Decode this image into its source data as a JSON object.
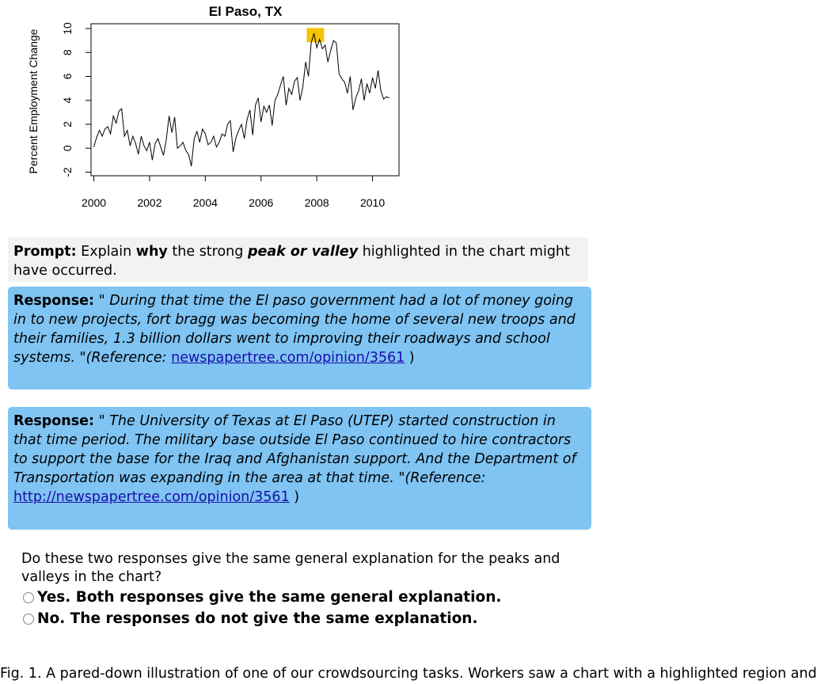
{
  "chart_data": {
    "type": "line",
    "title": "El Paso, TX",
    "xlabel": "",
    "ylabel": "Percent Employment Change",
    "xlim": [
      1999.9,
      2010.95
    ],
    "ylim": [
      -2.3,
      10.4
    ],
    "xticks": [
      "2000",
      "2002",
      "2004",
      "2006",
      "2008",
      "2010"
    ],
    "yticks": [
      "-2",
      "0",
      "2",
      "4",
      "6",
      "8",
      "10"
    ],
    "highlight": {
      "x": 2007.95,
      "y": 9.45,
      "color": "#f5c400"
    },
    "series": [
      {
        "name": "El Paso",
        "x": [
          2000.0,
          2000.1,
          2000.2,
          2000.3,
          2000.4,
          2000.5,
          2000.6,
          2000.7,
          2000.8,
          2000.9,
          2001.0,
          2001.1,
          2001.2,
          2001.3,
          2001.4,
          2001.5,
          2001.6,
          2001.7,
          2001.8,
          2001.9,
          2002.0,
          2002.1,
          2002.2,
          2002.3,
          2002.4,
          2002.5,
          2002.6,
          2002.7,
          2002.8,
          2002.9,
          2003.0,
          2003.1,
          2003.2,
          2003.3,
          2003.4,
          2003.5,
          2003.6,
          2003.7,
          2003.8,
          2003.9,
          2004.0,
          2004.1,
          2004.2,
          2004.3,
          2004.4,
          2004.5,
          2004.6,
          2004.7,
          2004.8,
          2004.9,
          2005.0,
          2005.1,
          2005.2,
          2005.3,
          2005.4,
          2005.5,
          2005.6,
          2005.7,
          2005.8,
          2005.9,
          2006.0,
          2006.1,
          2006.2,
          2006.3,
          2006.4,
          2006.5,
          2006.6,
          2006.7,
          2006.8,
          2006.9,
          2007.0,
          2007.1,
          2007.2,
          2007.3,
          2007.4,
          2007.5,
          2007.6,
          2007.7,
          2007.8,
          2007.9,
          2008.0,
          2008.1,
          2008.2,
          2008.3,
          2008.4,
          2008.5,
          2008.6,
          2008.7,
          2008.8,
          2008.9,
          2009.0,
          2009.1,
          2009.2,
          2009.3,
          2009.4,
          2009.5,
          2009.6,
          2009.7,
          2009.8,
          2009.9,
          2010.0,
          2010.1,
          2010.2,
          2010.3,
          2010.4,
          2010.5,
          2010.6
        ],
        "values": [
          0.1,
          0.9,
          1.5,
          1.0,
          1.6,
          1.8,
          1.2,
          2.7,
          2.1,
          3.1,
          3.3,
          1.0,
          1.5,
          0.2,
          1.0,
          0.4,
          -0.5,
          1.0,
          0.2,
          -0.2,
          0.5,
          -1.0,
          0.4,
          0.8,
          0.1,
          -0.6,
          0.7,
          2.7,
          1.3,
          2.6,
          0.0,
          0.2,
          0.5,
          -0.2,
          -0.5,
          -1.5,
          0.8,
          1.4,
          0.5,
          1.6,
          1.2,
          0.3,
          0.5,
          1.0,
          0.1,
          0.5,
          1.2,
          1.0,
          2.0,
          2.3,
          -0.3,
          0.9,
          1.5,
          2.0,
          0.8,
          2.4,
          3.2,
          1.1,
          3.6,
          4.2,
          2.2,
          3.5,
          3.0,
          3.6,
          1.9,
          4.0,
          4.5,
          5.3,
          6.0,
          3.6,
          5.0,
          4.5,
          5.6,
          5.9,
          4.0,
          5.1,
          7.2,
          6.0,
          8.8,
          9.6,
          8.4,
          9.1,
          8.3,
          8.6,
          7.2,
          8.2,
          9.0,
          8.8,
          6.2,
          5.8,
          5.5,
          4.6,
          6.0,
          3.2,
          4.2,
          4.8,
          5.8,
          4.0,
          5.4,
          4.6,
          5.9,
          5.0,
          6.5,
          4.8,
          4.1,
          4.3,
          4.2
        ]
      }
    ]
  },
  "prompt": {
    "label": "Prompt:",
    "text1": " Explain ",
    "bold": "why",
    "text2": " the strong ",
    "emph": "peak or valley",
    "text3": " highlighted in the chart might have occurred."
  },
  "responses": [
    {
      "label": "Response:",
      "text": " \" During that time the El paso government had a lot of money going in to new projects, fort bragg was becoming the home of several new troops and their families, 1.3 billion dollars went to improving their roadways and school systems. \"(Reference: ",
      "link": "newspapertree.com/opinion/3561",
      "tail": " )"
    },
    {
      "label": "Response:",
      "text": " \" The University of Texas at El Paso (UTEP) started construction in that time period. The military base outside El Paso continued to hire contractors to support the base for the Iraq and Afghanistan support. And the Department of Transportation was expanding in the area at that time. \"(Reference: ",
      "link": "http://newspapertree.com/opinion/3561",
      "tail": " )"
    }
  ],
  "question": "Do these two responses give the same general explanation for the peaks and valleys in the chart?",
  "options": {
    "yes": "Yes. Both responses give the same general explanation.",
    "no": "No. The responses do not give the same explanation."
  },
  "footer": "Fig. 1. A pared-down illustration of one of our crowdsourcing tasks. Workers saw a chart with a highlighted region and"
}
